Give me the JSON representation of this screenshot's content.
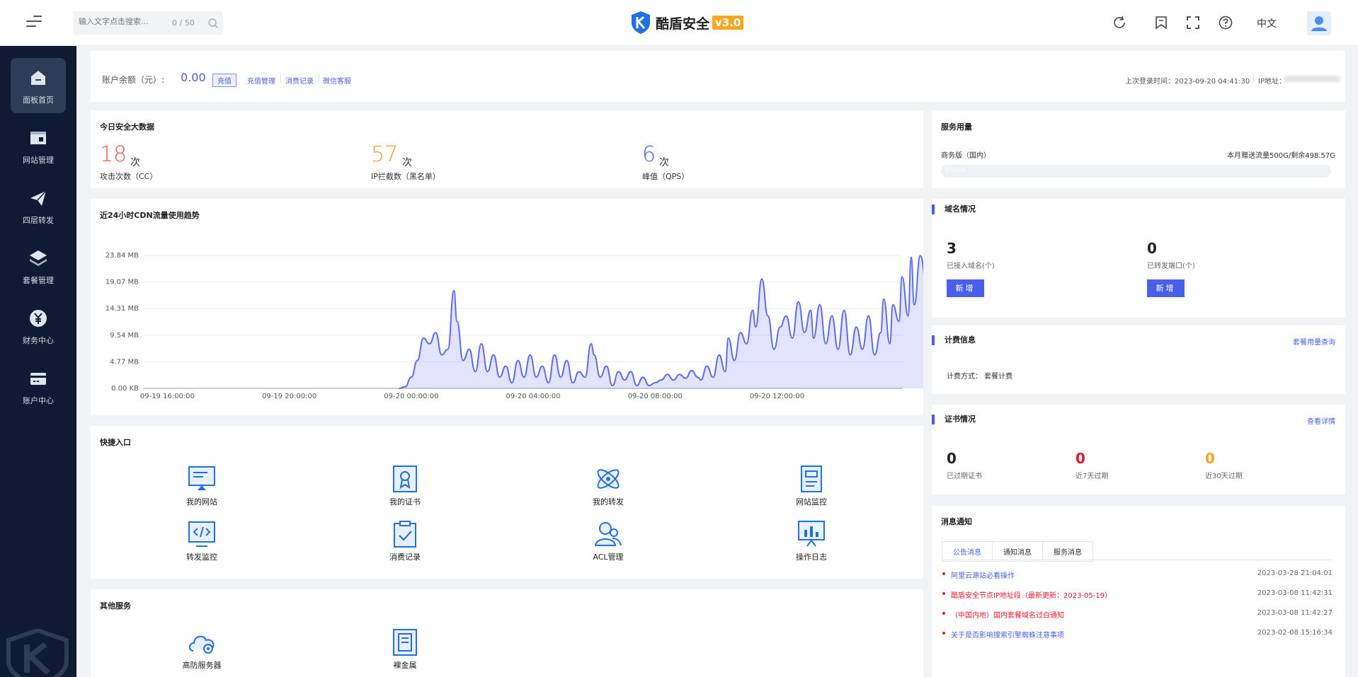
{
  "header": {
    "search_placeholder": "输入文字点击搜索...",
    "search_count": "0 / 50",
    "logo_text": "酷盾安全",
    "version": "v3.0",
    "language": "中文"
  },
  "sidebar": {
    "items": [
      {
        "label": "面板首页",
        "icon": "dashboard-icon",
        "active": true
      },
      {
        "label": "网站管理",
        "icon": "website-icon",
        "active": false
      },
      {
        "label": "四层转发",
        "icon": "paper-plane-icon",
        "active": false
      },
      {
        "label": "套餐管理",
        "icon": "layers-icon",
        "active": false
      },
      {
        "label": "财务中心",
        "icon": "yen-icon",
        "active": false
      },
      {
        "label": "账户中心",
        "icon": "wallet-icon",
        "active": false
      }
    ]
  },
  "account": {
    "balance_label": "账户余额（元）:",
    "balance_value": "0.00",
    "recharge": "充值",
    "links": [
      "充值管理",
      "消费记录",
      "微信客服"
    ],
    "last_login": "上次登录时间：2023-09-20 04:41:30",
    "ip_label": "IP地址："
  },
  "security": {
    "title": "今日安全大数据",
    "stats": [
      {
        "value": "18",
        "unit": "次",
        "label": "攻击次数（CC）",
        "color": "#f0595b"
      },
      {
        "value": "57",
        "unit": "次",
        "label": "IP拦截数（黑名单）",
        "color": "#f39a2d"
      },
      {
        "value": "6",
        "unit": "次",
        "label": "峰值（QPS）",
        "color": "#4a5fe8"
      }
    ]
  },
  "service_usage": {
    "title": "服务用量",
    "plan": "商务版（国内）",
    "quota": "本月赠送流量500G/剩余498.57G",
    "progress_text": "0.00%",
    "progress_fraction": 0.0
  },
  "domain": {
    "title": "域名情况",
    "items": [
      {
        "value": "3",
        "label": "已接入域名(个)",
        "button": "新增"
      },
      {
        "value": "0",
        "label": "已转发端口(个)",
        "button": "新增"
      }
    ]
  },
  "billing": {
    "title": "计费信息",
    "link": "套餐用量查询",
    "method": "计费方式：  套餐计费"
  },
  "cert": {
    "title": "证书情况",
    "link": "查看详情",
    "items": [
      {
        "value": "0",
        "label": "已过期证书",
        "color": "#222222"
      },
      {
        "value": "0",
        "label": "近7天过期",
        "color": "#e6192e"
      },
      {
        "value": "0",
        "label": "近30天过期",
        "color": "#f5a623"
      }
    ]
  },
  "messages": {
    "title": "消息通知",
    "tabs": [
      "公告消息",
      "通知消息",
      "服务消息"
    ],
    "items": [
      {
        "text": "阿里云源站必看操作",
        "time": "2023-03-28 21:04:01",
        "color": "#4a5fe8"
      },
      {
        "text": "酷盾安全节点IP地址段（最新更新：2023-05-19）",
        "time": "2023-03-08 11:42:31",
        "color": "#e6192e"
      },
      {
        "text": "（中国内地）国内套餐域名过白通知",
        "time": "2023-03-08 11:42:27",
        "color": "#e6192e"
      },
      {
        "text": "关于是否影响搜索引擎蜘蛛注意事项",
        "time": "2023-02-08 15:16:34",
        "color": "#4a5fe8"
      }
    ]
  },
  "quick": {
    "title": "快捷入口",
    "items": [
      {
        "label": "我的网站",
        "icon": "monitor-icon"
      },
      {
        "label": "我的证书",
        "icon": "certificate-icon"
      },
      {
        "label": "我的转发",
        "icon": "satellite-icon"
      },
      {
        "label": "网站监控",
        "icon": "server-icon"
      },
      {
        "label": "转发监控",
        "icon": "code-window-icon"
      },
      {
        "label": "消费记录",
        "icon": "clipboard-check-icon"
      },
      {
        "label": "ACL管理",
        "icon": "users-icon"
      },
      {
        "label": "操作日志",
        "icon": "chart-board-icon"
      }
    ]
  },
  "other": {
    "title": "其他服务",
    "items": [
      {
        "label": "高防服务器",
        "icon": "cloud-icon"
      },
      {
        "label": "裸金属",
        "icon": "rack-icon"
      }
    ]
  },
  "chart_data": {
    "type": "area",
    "title": "近24小时CDN流量使用趋势",
    "unit": "MB",
    "ylim": [
      0,
      23.84
    ],
    "y_ticks": [
      "0.00 KB",
      "4.77 MB",
      "9.54 MB",
      "14.31 MB",
      "19.07 MB",
      "23.84 MB"
    ],
    "y_tick_values": [
      0,
      4.77,
      9.54,
      14.31,
      19.07,
      23.84
    ],
    "x_ticks": [
      "09-19 16:00:00",
      "09-19 20:00:00",
      "09-20 00:00:00",
      "09-20 04:00:00",
      "09-20 08:00:00",
      "09-20 12:00:00"
    ],
    "x_tick_hours": [
      0,
      4,
      8,
      12,
      16,
      20
    ],
    "x_range_hours": [
      -0.8,
      24.1
    ],
    "grid": true,
    "legend": "none",
    "color": "#5b6cf0",
    "series": [
      {
        "values": [
          [
            7.6,
            0
          ],
          [
            7.8,
            0.3
          ],
          [
            8.0,
            2
          ],
          [
            8.2,
            5
          ],
          [
            8.4,
            9
          ],
          [
            8.6,
            8
          ],
          [
            8.8,
            10
          ],
          [
            9.0,
            6
          ],
          [
            9.2,
            7
          ],
          [
            9.4,
            17.5
          ],
          [
            9.5,
            12
          ],
          [
            9.7,
            5
          ],
          [
            9.9,
            7
          ],
          [
            10.1,
            3
          ],
          [
            10.3,
            8
          ],
          [
            10.5,
            3
          ],
          [
            10.7,
            6
          ],
          [
            10.9,
            2
          ],
          [
            11.1,
            4
          ],
          [
            11.3,
            1
          ],
          [
            11.5,
            5
          ],
          [
            11.7,
            2
          ],
          [
            11.9,
            6
          ],
          [
            12.1,
            2
          ],
          [
            12.3,
            4
          ],
          [
            12.5,
            1
          ],
          [
            12.7,
            6
          ],
          [
            12.9,
            2
          ],
          [
            13.1,
            5
          ],
          [
            13.3,
            1
          ],
          [
            13.5,
            3
          ],
          [
            13.7,
            2
          ],
          [
            13.9,
            8
          ],
          [
            14.0,
            6
          ],
          [
            14.2,
            2
          ],
          [
            14.4,
            4
          ],
          [
            14.6,
            0.5
          ],
          [
            14.8,
            3
          ],
          [
            15.0,
            1.5
          ],
          [
            15.2,
            3
          ],
          [
            15.4,
            0.5
          ],
          [
            15.6,
            2
          ],
          [
            15.8,
            0.5
          ],
          [
            16.0,
            1
          ],
          [
            16.2,
            1.5
          ],
          [
            16.4,
            2.5
          ],
          [
            16.6,
            1.5
          ],
          [
            16.8,
            2.5
          ],
          [
            17.0,
            1.8
          ],
          [
            17.2,
            3.2
          ],
          [
            17.4,
            2.0
          ],
          [
            17.5,
            1.5
          ],
          [
            17.7,
            4
          ],
          [
            17.9,
            2
          ],
          [
            18.1,
            6
          ],
          [
            18.3,
            3
          ],
          [
            18.4,
            9
          ],
          [
            18.6,
            5
          ],
          [
            18.8,
            10
          ],
          [
            19.0,
            8
          ],
          [
            19.2,
            14
          ],
          [
            19.3,
            11
          ],
          [
            19.5,
            19.6
          ],
          [
            19.7,
            13
          ],
          [
            19.9,
            7
          ],
          [
            20.1,
            11
          ],
          [
            20.3,
            13
          ],
          [
            20.5,
            9
          ],
          [
            20.7,
            15.5
          ],
          [
            20.9,
            10
          ],
          [
            21.1,
            14
          ],
          [
            21.2,
            9
          ],
          [
            21.4,
            15
          ],
          [
            21.6,
            8
          ],
          [
            21.8,
            13
          ],
          [
            22.0,
            7
          ],
          [
            22.2,
            14
          ],
          [
            22.4,
            6
          ],
          [
            22.6,
            11
          ],
          [
            22.8,
            7
          ],
          [
            23.0,
            13
          ],
          [
            23.2,
            6
          ],
          [
            23.4,
            10
          ],
          [
            23.5,
            16
          ],
          [
            23.7,
            8
          ],
          [
            23.8,
            15
          ],
          [
            24.0,
            12
          ],
          [
            24.1,
            20
          ],
          [
            24.3,
            13
          ],
          [
            24.4,
            23.5
          ],
          [
            24.5,
            15
          ],
          [
            24.7,
            23.8
          ],
          [
            24.9,
            19
          ],
          [
            25.0,
            23
          ],
          [
            25.2,
            14
          ],
          [
            25.4,
            16
          ],
          [
            25.6,
            12
          ],
          [
            25.8,
            15
          ],
          [
            26.0,
            13
          ],
          [
            26.2,
            17
          ],
          [
            26.4,
            9
          ],
          [
            26.5,
            12
          ]
        ]
      }
    ]
  }
}
